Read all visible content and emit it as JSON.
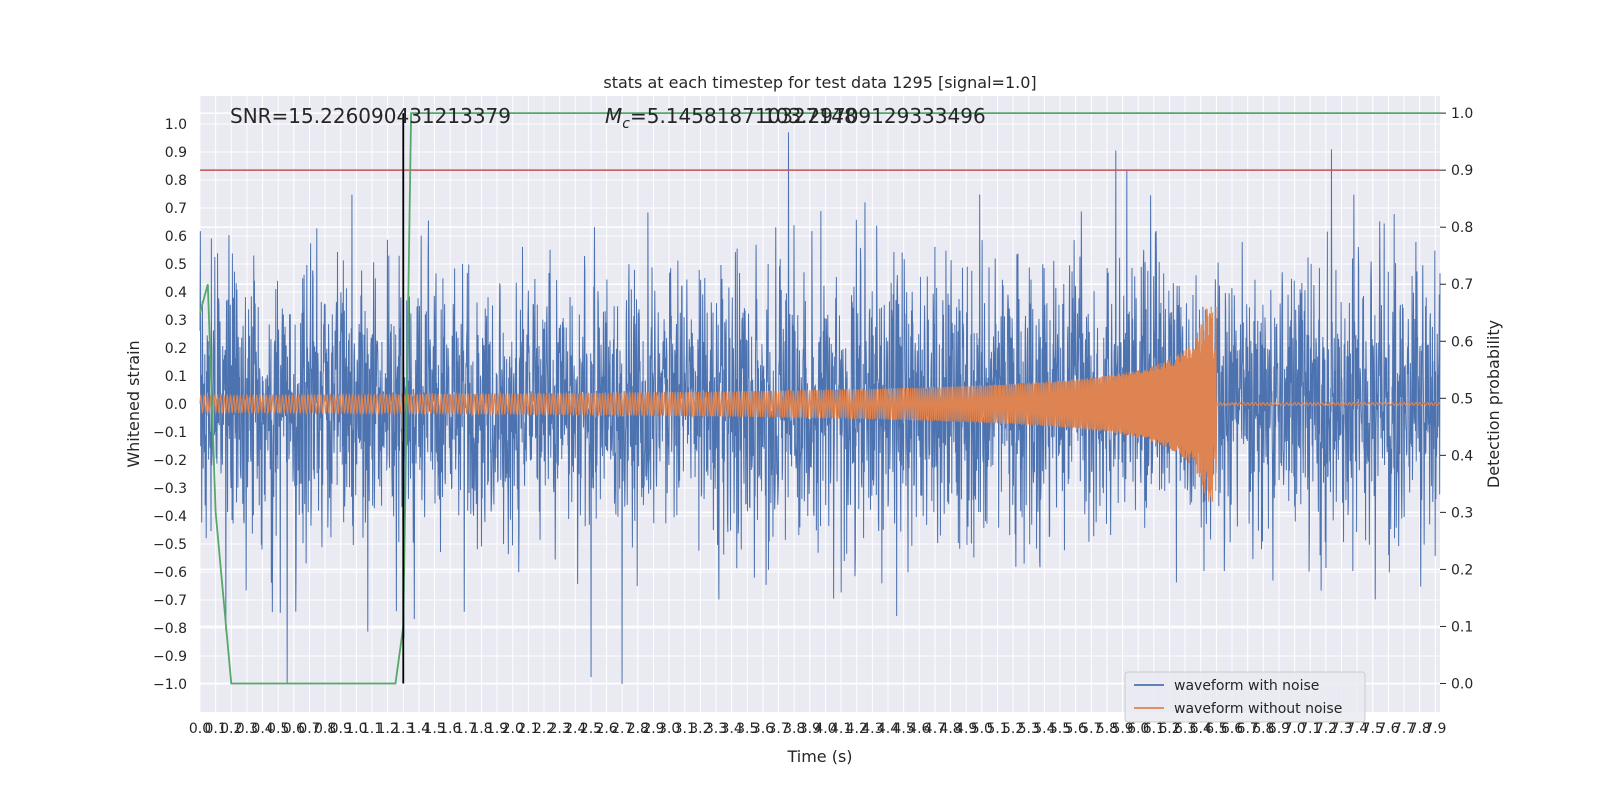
{
  "chart_data": {
    "type": "line",
    "title": "stats at each timestep for test data 1295 [signal=1.0]",
    "xlabel": "Time (s)",
    "ylabel": "Whitened strain",
    "y2label": "Detection probability",
    "xlim": [
      0.0,
      7.93
    ],
    "ylim": [
      -1.1,
      1.1
    ],
    "y2lim": [
      -0.05,
      1.03
    ],
    "x_ticks": [
      "0.0",
      "0.1",
      "0.2",
      "0.3",
      "0.4",
      "0.5",
      "0.6",
      "0.7",
      "0.8",
      "0.9",
      "1.0",
      "1.1",
      "1.2",
      "1.3",
      "1.4",
      "1.5",
      "1.6",
      "1.7",
      "1.8",
      "1.9",
      "2.0",
      "2.1",
      "2.2",
      "2.3",
      "2.4",
      "2.5",
      "2.6",
      "2.7",
      "2.8",
      "2.9",
      "3.0",
      "3.1",
      "3.2",
      "3.3",
      "3.4",
      "3.5",
      "3.6",
      "3.7",
      "3.8",
      "3.9",
      "4.0",
      "4.1",
      "4.2",
      "4.3",
      "4.4",
      "4.5",
      "4.6",
      "4.7",
      "4.8",
      "4.9",
      "5.0",
      "5.1",
      "5.2",
      "5.3",
      "5.4",
      "5.5",
      "5.6",
      "5.7",
      "5.8",
      "5.9",
      "6.0",
      "6.1",
      "6.2",
      "6.3",
      "6.4",
      "6.5",
      "6.6",
      "6.7",
      "6.8",
      "6.9",
      "7.0",
      "7.1",
      "7.2",
      "7.3",
      "7.4",
      "7.5",
      "7.6",
      "7.7",
      "7.8",
      "7.9"
    ],
    "y_ticks": [
      "1.0",
      "0.9",
      "0.8",
      "0.7",
      "0.6",
      "0.5",
      "0.4",
      "0.3",
      "0.2",
      "0.1",
      "0.0",
      "−0.1",
      "−0.2",
      "−0.3",
      "−0.4",
      "−0.5",
      "−0.6",
      "−0.7",
      "−0.8",
      "−0.9",
      "−1.0"
    ],
    "y2_ticks": [
      "1.0",
      "0.9",
      "0.8",
      "0.7",
      "0.6",
      "0.5",
      "0.4",
      "0.3",
      "0.2",
      "0.1",
      "0.0"
    ],
    "annotations": {
      "snr": "SNR=15.226090431213379",
      "mc_prefix": "M",
      "mc_sub": "c",
      "mc_value": "=5.145818710327148",
      "overlap": "103.29709129333496"
    },
    "threshold": 0.9,
    "merger_time": 6.5,
    "detection_time": 1.3,
    "series": [
      {
        "name": "waveform with noise",
        "color": "#4c72b0",
        "amplitude_typical": 0.5,
        "amplitude_peak": 1.0
      },
      {
        "name": "waveform without noise",
        "color": "#dd8452",
        "start_amplitude": 0.03,
        "peak_amplitude": 0.35,
        "end_time": 6.5
      },
      {
        "name": "detection probability",
        "color": "#55a868",
        "x": [
          0.0,
          0.05,
          0.1,
          0.2,
          0.3,
          1.2,
          1.25,
          1.3,
          1.35,
          7.93
        ],
        "y": [
          0.65,
          0.7,
          0.3,
          0.0,
          0.0,
          0.0,
          0.0,
          0.1,
          1.0,
          1.0
        ]
      }
    ],
    "threshold_color": "#c44e52",
    "detection_line_color": "#000000",
    "legend": [
      "waveform with noise",
      "waveform without noise"
    ],
    "legend_position": "lower-right"
  }
}
